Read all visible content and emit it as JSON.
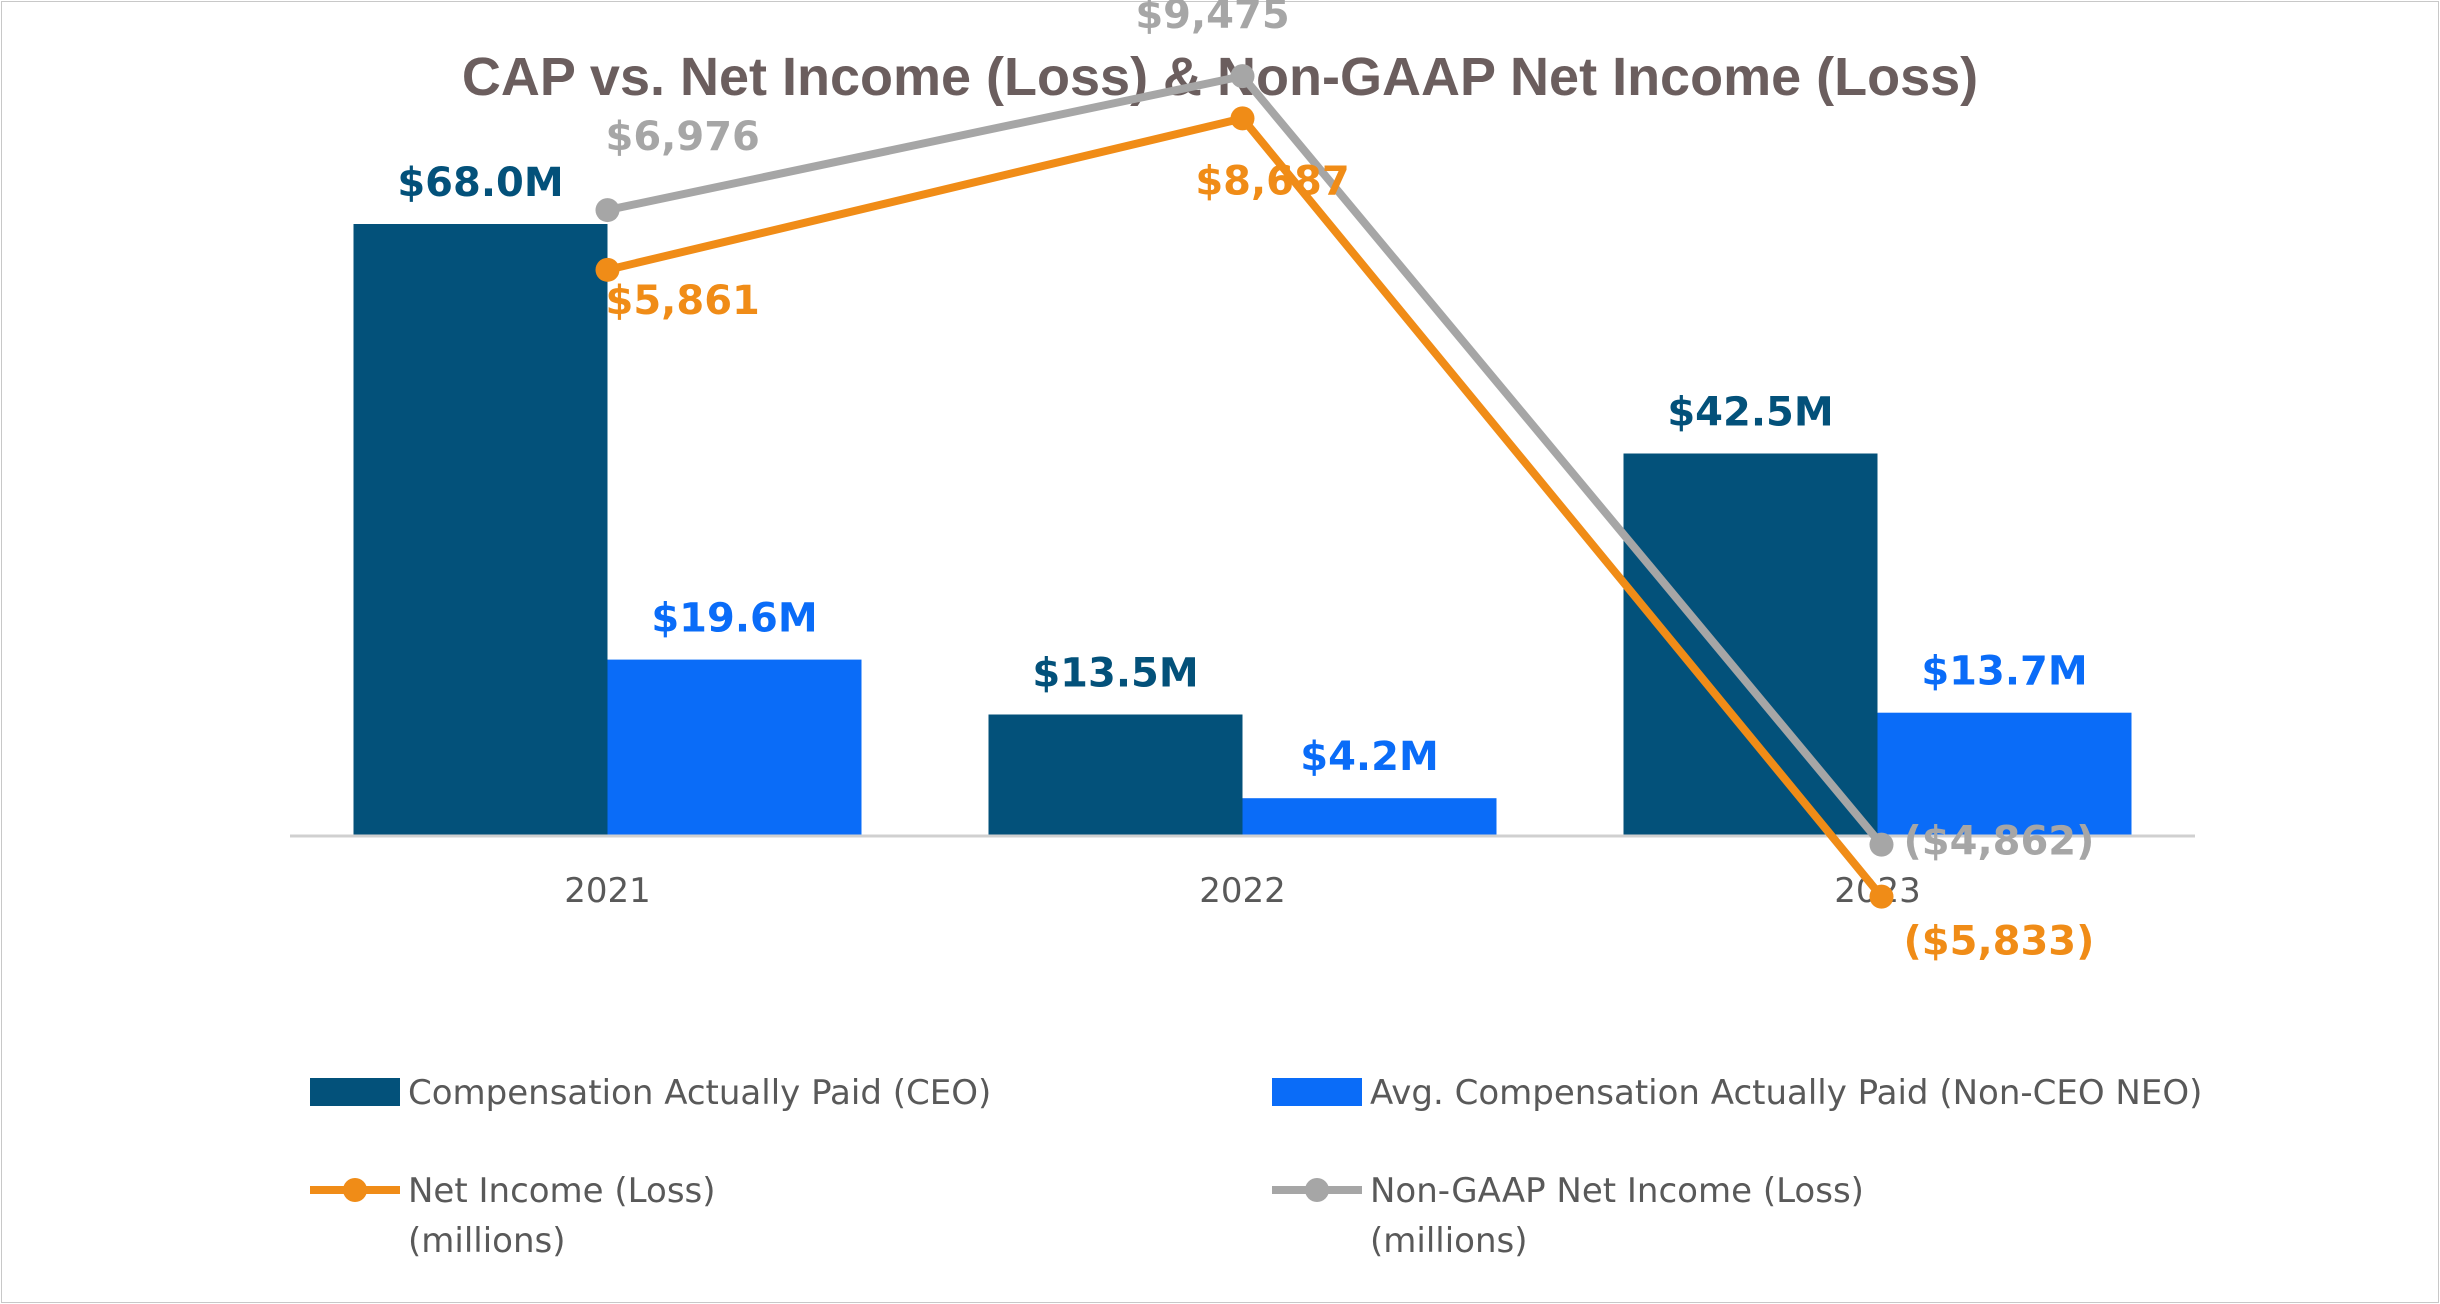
{
  "colors": {
    "ceo": "#03517a",
    "neo": "#0a6cf8",
    "net": "#f08c17",
    "nongaap": "#a6a6a6",
    "title": "#6b5e5e",
    "axis": "#d0d0d0",
    "text": "#595959"
  },
  "chart_data": {
    "type": "bar",
    "title": "CAP vs. Net Income (Loss) & Non-GAAP Net Income (Loss)",
    "categories": [
      "2021",
      "2022",
      "2023"
    ],
    "series": [
      {
        "key": "ceo",
        "type": "bar",
        "name": "Compensation Actually Paid (CEO)",
        "values": [
          68.0,
          13.5,
          42.5
        ],
        "labels": [
          "$68.0M",
          "$13.5M",
          "$42.5M"
        ]
      },
      {
        "key": "neo",
        "type": "bar",
        "name": "Avg. Compensation Actually Paid (Non-CEO NEO)",
        "values": [
          19.6,
          4.2,
          13.7
        ],
        "labels": [
          "$19.6M",
          "$4.2M",
          "$13.7M"
        ]
      },
      {
        "key": "net",
        "type": "line",
        "name": "Net Income (Loss)",
        "name_line2": "(millions)",
        "values": [
          5861,
          8687,
          -5833
        ],
        "labels": [
          "$5,861",
          "$8,687",
          "($5,833)"
        ]
      },
      {
        "key": "nongaap",
        "type": "line",
        "name": "Non-GAAP Net Income (Loss)",
        "name_line2": "(millions)",
        "values": [
          6976,
          9475,
          -4862
        ],
        "labels": [
          "$6,976",
          "$9,475",
          "($4,862)"
        ]
      }
    ],
    "bar_axis_range": [
      0,
      72
    ],
    "line_axis_range": [
      -7000,
      11000
    ],
    "legend_position": "bottom",
    "grid": false
  }
}
